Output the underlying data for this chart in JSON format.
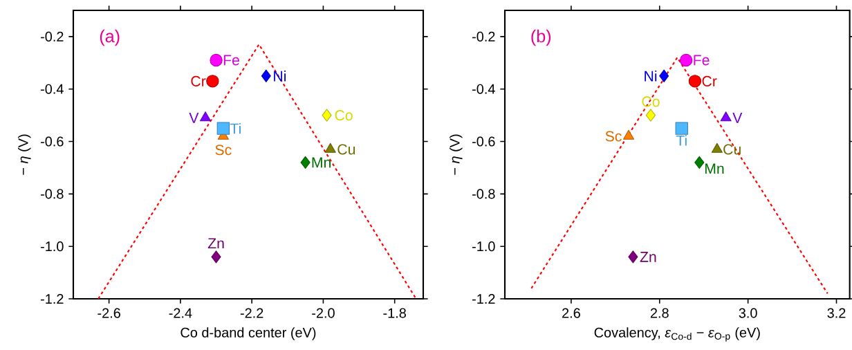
{
  "chart_data": [
    {
      "type": "scatter",
      "xlabel": "Co d-band center (eV)",
      "ylabel": "− *η* (V)",
      "annotations": [
        "(a)"
      ],
      "xlim": [
        -2.7,
        -1.72
      ],
      "ylim": [
        -1.2,
        -0.1
      ],
      "xticks": [
        -2.6,
        -2.4,
        -2.2,
        {
          "value": -2.0,
          "label": "-2.0"
        },
        -1.8
      ],
      "yticks": [
        -1.2,
        {
          "value": -1.0,
          "label": "-1.0"
        },
        -0.8,
        -0.6,
        -0.4,
        -0.2
      ],
      "series": [
        {
          "name": "Sc",
          "color": "#ff8000",
          "marker": "triangle",
          "x": [
            -2.28
          ],
          "values": [
            -0.58
          ]
        },
        {
          "name": "Ti",
          "color": "#4db8ff",
          "marker": "square",
          "x": [
            -2.28
          ],
          "values": [
            -0.55
          ]
        },
        {
          "name": "V",
          "color": "#8000ff",
          "marker": "triangle",
          "x": [
            -2.33
          ],
          "values": [
            -0.51
          ]
        },
        {
          "name": "Cr",
          "color": "#ff0000",
          "marker": "circle",
          "x": [
            -2.31
          ],
          "values": [
            -0.37
          ]
        },
        {
          "name": "Mn",
          "color": "#008000",
          "marker": "diamond",
          "x": [
            -2.05
          ],
          "values": [
            -0.68
          ]
        },
        {
          "name": "Fe",
          "color": "#ff00ff",
          "marker": "circle",
          "x": [
            -2.3
          ],
          "values": [
            -0.29
          ]
        },
        {
          "name": "Co",
          "color": "#ffff00",
          "marker": "diamond",
          "x": [
            -1.99
          ],
          "values": [
            -0.5
          ]
        },
        {
          "name": "Ni",
          "color": "#0000ff",
          "marker": "diamond",
          "x": [
            -2.16
          ],
          "values": [
            -0.35
          ]
        },
        {
          "name": "Cu",
          "color": "#808000",
          "marker": "triangle",
          "x": [
            -1.98
          ],
          "values": [
            -0.63
          ]
        },
        {
          "name": "Zn",
          "color": "#800080",
          "marker": "diamond",
          "x": [
            -2.3
          ],
          "values": [
            -1.04
          ]
        },
        {
          "type": "line",
          "color": "#ff0000",
          "marker": "none",
          "line_style": "dashed",
          "x": [
            -2.63,
            -2.18,
            -1.74
          ],
          "values": [
            -1.2,
            -0.23,
            -1.2
          ]
        }
      ]
    },
    {
      "type": "scatter",
      "xlabel": "Covalency, *ε*$_{Co-d}$ − *ε*$_{O-p}$ (eV)",
      "ylabel": "− *η* (V)",
      "annotations": [
        "(b)"
      ],
      "xlim": [
        2.45,
        3.23
      ],
      "ylim": [
        -1.2,
        -0.1
      ],
      "xticks": [
        2.6,
        2.8,
        {
          "value": 3.0,
          "label": "3.0"
        },
        3.2
      ],
      "yticks": [
        -1.2,
        {
          "value": -1.0,
          "label": "-1.0"
        },
        -0.8,
        -0.6,
        -0.4,
        -0.2
      ],
      "series": [
        {
          "name": "Sc",
          "color": "#ff8000",
          "marker": "triangle",
          "x": [
            2.73
          ],
          "values": [
            -0.58
          ]
        },
        {
          "name": "Ti",
          "color": "#4db8ff",
          "marker": "square",
          "x": [
            2.85
          ],
          "values": [
            -0.55
          ]
        },
        {
          "name": "V",
          "color": "#8000ff",
          "marker": "triangle",
          "x": [
            2.95
          ],
          "values": [
            -0.51
          ]
        },
        {
          "name": "Cr",
          "color": "#ff0000",
          "marker": "circle",
          "x": [
            2.88
          ],
          "values": [
            -0.37
          ]
        },
        {
          "name": "Mn",
          "color": "#008000",
          "marker": "diamond",
          "x": [
            2.89
          ],
          "values": [
            -0.68
          ]
        },
        {
          "name": "Fe",
          "color": "#ff00ff",
          "marker": "circle",
          "x": [
            2.86
          ],
          "values": [
            -0.29
          ]
        },
        {
          "name": "Co",
          "color": "#ffff00",
          "marker": "diamond",
          "x": [
            2.78
          ],
          "values": [
            -0.5
          ]
        },
        {
          "name": "Ni",
          "color": "#0000ff",
          "marker": "diamond",
          "x": [
            2.81
          ],
          "values": [
            -0.35
          ]
        },
        {
          "name": "Cu",
          "color": "#808000",
          "marker": "triangle",
          "x": [
            2.93
          ],
          "values": [
            -0.63
          ]
        },
        {
          "name": "Zn",
          "color": "#800080",
          "marker": "diamond",
          "x": [
            2.74
          ],
          "values": [
            -1.04
          ]
        },
        {
          "type": "line",
          "color": "#ff0000",
          "marker": "none",
          "line_style": "dashed",
          "x": [
            2.51,
            2.84,
            3.18
          ],
          "values": [
            -1.16,
            -0.28,
            -1.18
          ]
        }
      ]
    }
  ]
}
